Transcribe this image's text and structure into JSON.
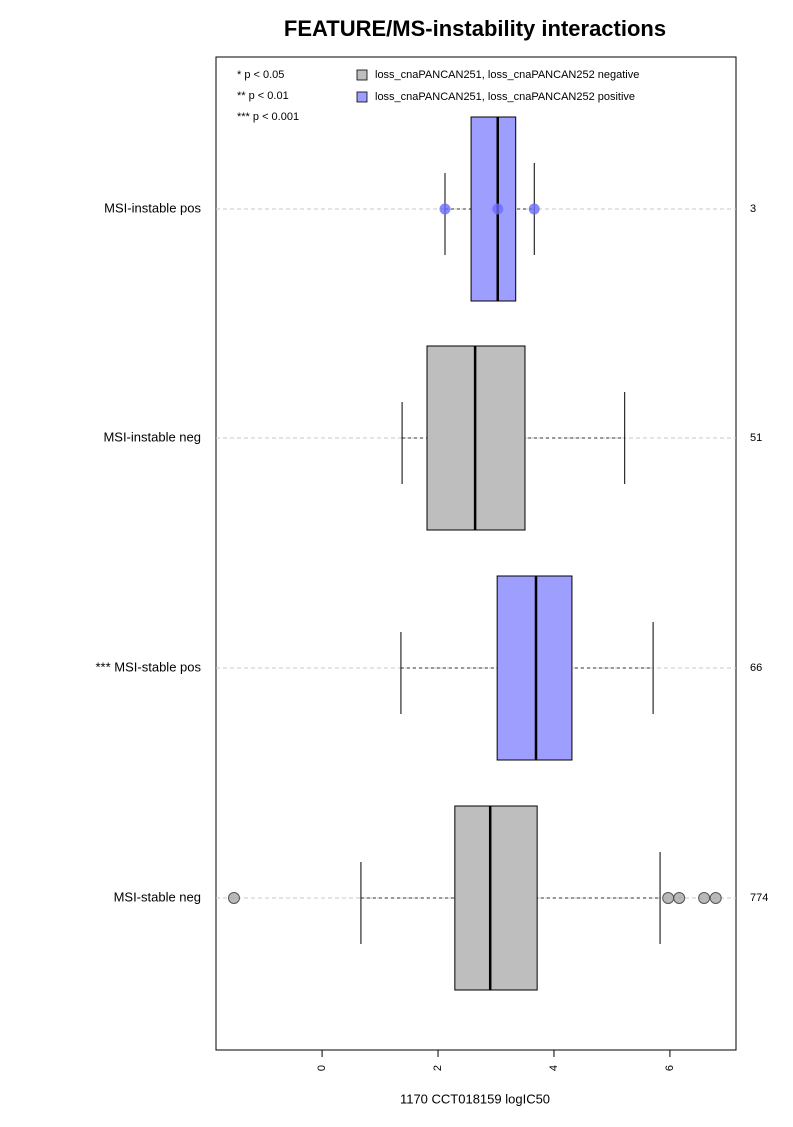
{
  "chart_data": {
    "type": "boxplot",
    "title": "FEATURE/MS-instability interactions",
    "x_label": "1170 CCT018159 logIC50",
    "xlim": [
      -1.83,
      7.14
    ],
    "xticks": [
      0,
      2,
      4,
      6
    ],
    "grid": true,
    "notes": [
      "* p < 0.05",
      "** p < 0.01",
      "*** p < 0.001"
    ],
    "legend": [
      {
        "name": "loss_cnaPANCAN251, loss_cnaPANCAN252 negative",
        "color": "#bebebe"
      },
      {
        "name": "loss_cnaPANCAN251, loss_cnaPANCAN252 positive",
        "color": "#9e9eff"
      }
    ],
    "groups": [
      {
        "label": "MSI-instable pos",
        "n": "3",
        "color": "#9e9eff",
        "point_color": "#6a6aff",
        "whisker_low": 2.12,
        "q1": 2.57,
        "median": 3.03,
        "q3": 3.34,
        "whisker_high": 3.66,
        "points": [
          2.12,
          3.03,
          3.66
        ]
      },
      {
        "label": "MSI-instable neg",
        "n": "51",
        "color": "#bebebe",
        "point_color": "#a8a8a8",
        "whisker_low": 1.38,
        "q1": 1.81,
        "median": 2.64,
        "q3": 3.5,
        "whisker_high": 5.22,
        "points": []
      },
      {
        "label": "*** MSI-stable pos",
        "n": "66",
        "color": "#9e9eff",
        "point_color": "#6a6aff",
        "whisker_low": 1.36,
        "q1": 3.02,
        "median": 3.69,
        "q3": 4.31,
        "whisker_high": 5.71,
        "points": []
      },
      {
        "label": "MSI-stable neg",
        "n": "774",
        "color": "#bebebe",
        "point_color": "#a8a8a8",
        "whisker_low": 0.67,
        "q1": 2.29,
        "median": 2.9,
        "q3": 3.71,
        "whisker_high": 5.83,
        "points": [
          -1.52,
          5.97,
          6.16,
          6.59,
          6.79
        ]
      }
    ]
  }
}
